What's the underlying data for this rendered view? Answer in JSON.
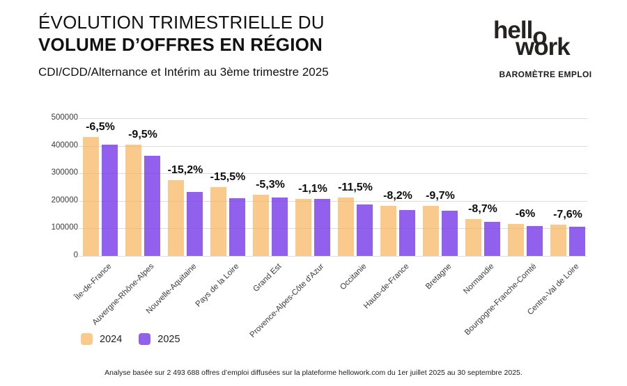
{
  "header": {
    "title_line1": "ÉVOLUTION TRIMESTRIELLE DU",
    "title_line2": "VOLUME D’OFFRES EN RÉGION",
    "subtitle": "CDI/CDD/Alternance et Intérim au 3ème trimestre 2025"
  },
  "brand": {
    "logo_part1": "hell",
    "logo_part2": "o",
    "logo_line2": "work",
    "tagline": "BAROMÈTRE EMPLOI"
  },
  "chart_data": {
    "type": "bar",
    "categories": [
      "Île-de-France",
      "Auvergne-Rhône-Alpes",
      "Nouvelle-Aquitaine",
      "Pays de la Loire",
      "Grand Est",
      "Provence-Alpes-Côte d'Azur",
      "Occitanie",
      "Hauts-de-France",
      "Bretagne",
      "Normandie",
      "Bourgogne-Franche-Comté",
      "Centre-Val de Loire"
    ],
    "series": [
      {
        "name": "2024",
        "color": "#FACA8D",
        "values": [
          432000,
          403000,
          275000,
          249000,
          223000,
          208000,
          211000,
          181000,
          182000,
          135000,
          116000,
          115000
        ]
      },
      {
        "name": "2025",
        "color": "#9161EE",
        "values": [
          404000,
          364000,
          233000,
          210000,
          211000,
          206000,
          187000,
          166000,
          164000,
          123000,
          109000,
          106000
        ]
      }
    ],
    "delta_labels": [
      "-6,5%",
      "-9,5%",
      "-15,2%",
      "-15,5%",
      "-5,3%",
      "-1,1%",
      "-11,5%",
      "-8,2%",
      "-9,7%",
      "-8,7%",
      "-6%",
      "-7,6%"
    ],
    "title": "Évolution trimestrielle du volume d'offres en région",
    "xlabel": "",
    "ylabel": "",
    "ylim": [
      0,
      500000
    ],
    "ytick_step": 100000,
    "yticks": [
      "0",
      "100000",
      "200000",
      "300000",
      "400000",
      "500000"
    ],
    "grid": true,
    "legend_position": "bottom-left"
  },
  "legend": {
    "items": [
      {
        "label": "2024",
        "color": "#FACA8D"
      },
      {
        "label": "2025",
        "color": "#9161EE"
      }
    ]
  },
  "footer": {
    "note": "Analyse basée sur 2 493 688 offres d’emploi diffusées sur la plateforme hellowork.com du 1er juillet 2025 au 30 septembre 2025."
  }
}
